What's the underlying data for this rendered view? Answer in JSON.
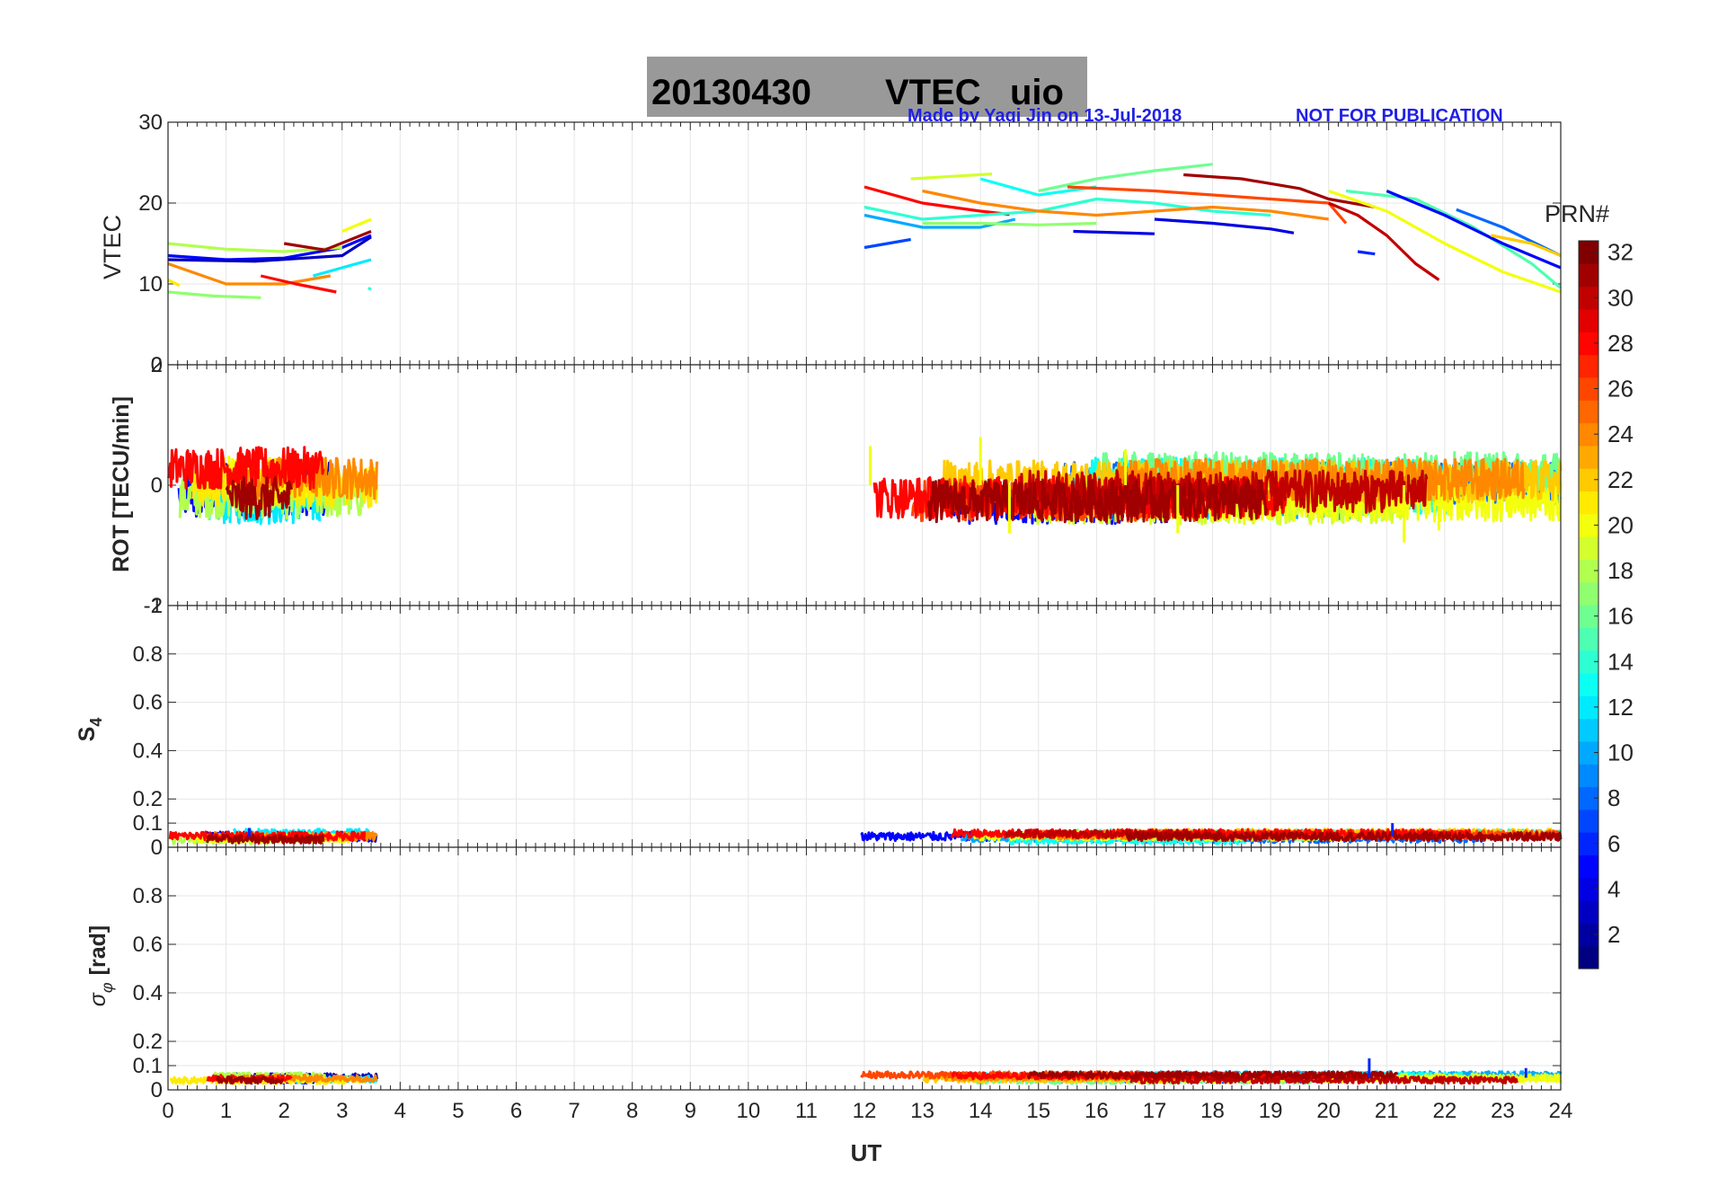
{
  "figure": {
    "title_date": "20130430",
    "title_main": "VTEC",
    "title_station": "uio",
    "credit": "Made by Yaqi Jin on 13-Jul-2018",
    "notice": "NOT FOR PUBLICATION",
    "credit_color": "#1f1fe6",
    "title_bg": "#999999"
  },
  "colorbar": {
    "label": "PRN#",
    "ticks": [
      "2",
      "4",
      "6",
      "8",
      "10",
      "12",
      "14",
      "16",
      "18",
      "20",
      "22",
      "24",
      "26",
      "28",
      "30",
      "32"
    ],
    "range": [
      1,
      32
    ],
    "colormap": "jet"
  },
  "chart_data": [
    {
      "type": "line",
      "panel": "vtec",
      "ylabel": "VTEC",
      "ylim": [
        0,
        30
      ],
      "yticks": [
        "0",
        "10",
        "20",
        "30"
      ],
      "xlim": [
        0,
        24
      ],
      "grid": true,
      "series": [
        {
          "prn": 5,
          "x": [
            0.0,
            1.0,
            2.0,
            3.0,
            3.5
          ],
          "values": [
            13.5,
            13.0,
            13.2,
            14.5,
            16.0
          ]
        },
        {
          "prn": 3,
          "x": [
            0.0,
            1.5,
            3.0,
            3.5
          ],
          "values": [
            13.0,
            12.8,
            13.5,
            15.8
          ]
        },
        {
          "prn": 12,
          "x": [
            2.5,
            3.0,
            3.5
          ],
          "values": [
            11.0,
            12.0,
            13.0
          ]
        },
        {
          "prn": 18,
          "x": [
            0.0,
            1.0,
            2.0,
            3.0
          ],
          "values": [
            15.0,
            14.3,
            14.0,
            14.5
          ]
        },
        {
          "prn": 20,
          "x": [
            3.0,
            3.5
          ],
          "values": [
            16.5,
            18.0
          ]
        },
        {
          "prn": 24,
          "x": [
            0.0,
            1.0,
            2.0,
            2.8
          ],
          "values": [
            12.5,
            10.0,
            10.0,
            11.0
          ]
        },
        {
          "prn": 21,
          "x": [
            0.0,
            0.2
          ],
          "values": [
            10.5,
            9.8
          ]
        },
        {
          "prn": 17,
          "x": [
            0.0,
            0.8,
            1.6
          ],
          "values": [
            9.0,
            8.5,
            8.3
          ]
        },
        {
          "prn": 28,
          "x": [
            1.6,
            2.2,
            2.9
          ],
          "values": [
            11.0,
            10.0,
            9.0
          ]
        },
        {
          "prn": 31,
          "x": [
            2.0,
            2.7,
            3.5
          ],
          "values": [
            15.0,
            14.2,
            16.5
          ]
        },
        {
          "prn": 14,
          "x": [
            3.45,
            3.5
          ],
          "values": [
            9.5,
            9.3
          ]
        },
        {
          "prn": 28,
          "x": [
            12.0,
            13.0,
            14.0,
            14.5
          ],
          "values": [
            22.0,
            20.0,
            19.0,
            18.6
          ]
        },
        {
          "prn": 10,
          "x": [
            12.0,
            13.0,
            14.0,
            14.6
          ],
          "values": [
            18.5,
            17.0,
            17.0,
            18.0
          ]
        },
        {
          "prn": 14,
          "x": [
            12.0,
            13.0,
            14.0,
            15.0,
            16.0,
            17.0,
            18.0,
            19.0
          ],
          "values": [
            19.5,
            18.0,
            18.5,
            19.0,
            20.5,
            20.0,
            19.0,
            18.5
          ]
        },
        {
          "prn": 17,
          "x": [
            13.0,
            14.0,
            15.0,
            16.0
          ],
          "values": [
            17.5,
            17.5,
            17.3,
            17.5
          ]
        },
        {
          "prn": 19,
          "x": [
            12.8,
            13.5,
            14.2
          ],
          "values": [
            23.0,
            23.3,
            23.6
          ]
        },
        {
          "prn": 13,
          "x": [
            14.0,
            15.0,
            16.0
          ],
          "values": [
            23.0,
            21.0,
            22.0
          ]
        },
        {
          "prn": 16,
          "x": [
            15.0,
            16.0,
            17.0,
            18.0
          ],
          "values": [
            21.5,
            23.0,
            24.0,
            24.8
          ]
        },
        {
          "prn": 24,
          "x": [
            13.0,
            14.0,
            15.0,
            16.0,
            17.0,
            18.0,
            19.0,
            20.0
          ],
          "values": [
            21.5,
            20.0,
            19.0,
            18.5,
            19.0,
            19.5,
            19.0,
            18.0
          ]
        },
        {
          "prn": 26,
          "x": [
            15.5,
            17.0,
            18.0,
            19.0,
            20.0,
            20.3
          ],
          "values": [
            22.0,
            21.5,
            21.0,
            20.5,
            20.0,
            17.5
          ]
        },
        {
          "prn": 7,
          "x": [
            12.0,
            12.8
          ],
          "values": [
            14.5,
            15.5
          ]
        },
        {
          "prn": 4,
          "x": [
            17.0,
            18.0,
            19.0,
            19.4
          ],
          "values": [
            18.0,
            17.5,
            16.8,
            16.3
          ]
        },
        {
          "prn": 4,
          "x": [
            15.6,
            17.0
          ],
          "values": [
            16.5,
            16.2
          ]
        },
        {
          "prn": 31,
          "x": [
            17.5,
            18.5,
            19.5,
            20.0,
            20.8
          ],
          "values": [
            23.5,
            23.0,
            21.8,
            20.5,
            19.5
          ]
        },
        {
          "prn": 30,
          "x": [
            20.0,
            20.5,
            21.0,
            21.5,
            21.9
          ],
          "values": [
            20.0,
            18.5,
            16.0,
            12.5,
            10.5
          ]
        },
        {
          "prn": 6,
          "x": [
            20.5,
            20.8
          ],
          "values": [
            14.0,
            13.7
          ]
        },
        {
          "prn": 20,
          "x": [
            20.0,
            21.0,
            22.0,
            23.0,
            24.0
          ],
          "values": [
            21.5,
            19.0,
            15.0,
            11.5,
            9.0
          ]
        },
        {
          "prn": 15,
          "x": [
            20.3,
            21.5,
            22.5,
            23.5,
            24.0
          ],
          "values": [
            21.5,
            20.5,
            17.0,
            12.5,
            9.5
          ]
        },
        {
          "prn": 5,
          "x": [
            21.0,
            22.0,
            23.0,
            24.0
          ],
          "values": [
            21.5,
            18.5,
            15.0,
            12.0
          ]
        },
        {
          "prn": 8,
          "x": [
            22.2,
            23.0,
            24.0
          ],
          "values": [
            19.2,
            17.0,
            13.5
          ]
        },
        {
          "prn": 22,
          "x": [
            22.8,
            23.5,
            24.0
          ],
          "values": [
            16.0,
            15.0,
            13.5
          ]
        }
      ]
    },
    {
      "type": "scatter",
      "panel": "rot",
      "ylabel": "ROT [TECU/min]",
      "ylim": [
        -2,
        2
      ],
      "yticks": [
        "-2",
        "0",
        "2"
      ],
      "xlim": [
        0,
        24
      ],
      "grid": true,
      "segments": [
        [
          0.0,
          3.6
        ],
        [
          11.9,
          24.0
        ]
      ],
      "typical_range": [
        -0.5,
        0.5
      ],
      "extremes": [
        {
          "x": 12.1,
          "value": 0.65
        },
        {
          "x": 14.0,
          "value": 0.8
        },
        {
          "x": 14.5,
          "value": -0.8
        },
        {
          "x": 16.5,
          "value": 0.6
        },
        {
          "x": 17.4,
          "value": -0.8
        },
        {
          "x": 21.3,
          "value": -0.95
        },
        {
          "x": 21.9,
          "value": -0.75
        }
      ]
    },
    {
      "type": "scatter",
      "panel": "s4",
      "ylabel_main": "S",
      "ylabel_sub": "4",
      "ylim": [
        0,
        1
      ],
      "yticks": [
        "0",
        "0.1",
        "0.2",
        "0.4",
        "0.6",
        "0.8",
        "1"
      ],
      "xlim": [
        0,
        24
      ],
      "grid": true,
      "segments": [
        [
          0.0,
          3.6
        ],
        [
          11.9,
          24.0
        ]
      ],
      "typical_range": [
        0.02,
        0.07
      ],
      "extremes": [
        {
          "x": 1.4,
          "value": 0.08
        },
        {
          "x": 21.1,
          "value": 0.1
        }
      ]
    },
    {
      "type": "scatter",
      "panel": "sigma_phi",
      "ylabel_main": "σ",
      "ylabel_sub": "φ",
      "ylabel_unit": "[rad]",
      "ylim": [
        0,
        1
      ],
      "yticks": [
        "0",
        "0.1",
        "0.2",
        "0.4",
        "0.6",
        "0.8"
      ],
      "xlim": [
        0,
        24
      ],
      "xticks": [
        "0",
        "1",
        "2",
        "3",
        "4",
        "5",
        "6",
        "7",
        "8",
        "9",
        "10",
        "11",
        "12",
        "13",
        "14",
        "15",
        "16",
        "17",
        "18",
        "19",
        "20",
        "21",
        "22",
        "23",
        "24"
      ],
      "xlabel": "UT",
      "grid": true,
      "segments": [
        [
          0.0,
          3.6
        ],
        [
          11.9,
          24.0
        ]
      ],
      "typical_range": [
        0.03,
        0.07
      ],
      "extremes": [
        {
          "x": 20.7,
          "value": 0.13
        },
        {
          "x": 23.4,
          "value": 0.09
        }
      ]
    }
  ]
}
